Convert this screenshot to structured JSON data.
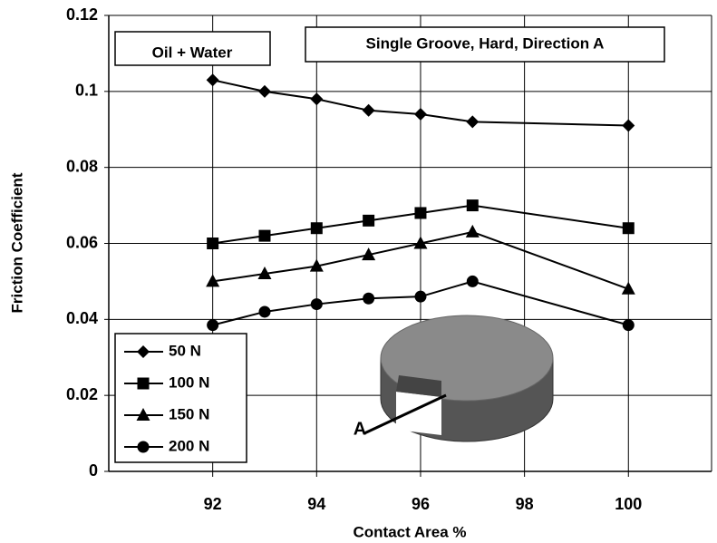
{
  "chart_data": {
    "type": "line",
    "x_label": "Contact Area %",
    "y_label": "Friction Coefficient",
    "x": [
      92,
      93,
      94,
      95,
      96,
      97,
      100
    ],
    "series": [
      {
        "name": "50 N",
        "color": "#000000",
        "marker": "diamond",
        "values": [
          0.103,
          0.1,
          0.098,
          0.095,
          0.094,
          0.092,
          0.091
        ]
      },
      {
        "name": "100 N",
        "color": "#000000",
        "marker": "square",
        "values": [
          0.06,
          0.062,
          0.064,
          0.066,
          0.068,
          0.07,
          0.064
        ]
      },
      {
        "name": "150 N",
        "color": "#000000",
        "marker": "triangle",
        "values": [
          0.05,
          0.052,
          0.054,
          0.057,
          0.06,
          0.063,
          0.048
        ]
      },
      {
        "name": "200 N",
        "color": "#000000",
        "marker": "circle",
        "values": [
          0.0385,
          0.042,
          0.044,
          0.0455,
          0.046,
          0.05,
          0.0385
        ]
      }
    ],
    "xlim": [
      90,
      101.6
    ],
    "xticks": [
      92,
      94,
      96,
      98,
      100
    ],
    "ylim": [
      0,
      0.12
    ],
    "yticks": [
      0,
      0.02,
      0.04,
      0.06,
      0.08,
      0.1,
      0.12
    ],
    "grid": true,
    "legend": "lower left",
    "annotations": [
      "Oil + Water",
      "Single Groove, Hard, Direction A",
      "A"
    ]
  }
}
